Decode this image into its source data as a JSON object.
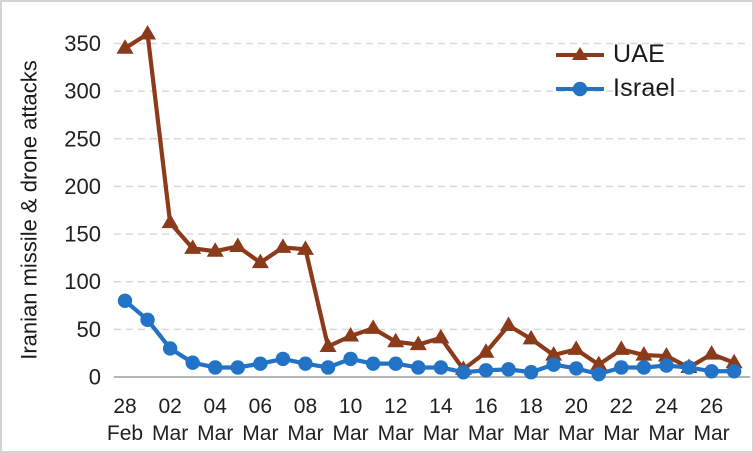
{
  "chart_data": {
    "type": "line",
    "title": "",
    "xlabel": "",
    "ylabel": "Iranian missile & drone attacks",
    "ylim": [
      0,
      350
    ],
    "yticks": [
      0,
      50,
      100,
      150,
      200,
      250,
      300,
      350
    ],
    "grid": "horizontal-dashed",
    "legend_position": "top-right-inside",
    "x_tick_label_interval": 2,
    "categories": [
      "28 Feb",
      "01 Mar",
      "02 Mar",
      "03 Mar",
      "04 Mar",
      "05 Mar",
      "06 Mar",
      "07 Mar",
      "08 Mar",
      "09 Mar",
      "10 Mar",
      "11 Mar",
      "12 Mar",
      "13 Mar",
      "14 Mar",
      "15 Mar",
      "16 Mar",
      "17 Mar",
      "18 Mar",
      "19 Mar",
      "20 Mar",
      "21 Mar",
      "22 Mar",
      "23 Mar",
      "24 Mar",
      "25 Mar",
      "26 Mar",
      "27 Mar"
    ],
    "series": [
      {
        "name": "UAE",
        "marker": "triangle",
        "color": "#8B3A1A",
        "values": [
          345,
          360,
          162,
          135,
          132,
          137,
          120,
          136,
          134,
          32,
          43,
          51,
          37,
          34,
          41,
          8,
          26,
          54,
          40,
          23,
          29,
          13,
          29,
          23,
          22,
          10,
          24,
          15
        ]
      },
      {
        "name": "Israel",
        "marker": "circle",
        "color": "#2272C6",
        "values": [
          80,
          60,
          30,
          15,
          10,
          10,
          14,
          19,
          14,
          10,
          19,
          14,
          14,
          10,
          10,
          5,
          7,
          8,
          5,
          13,
          9,
          3,
          10,
          10,
          12,
          10,
          6,
          6
        ]
      }
    ],
    "colors": {
      "gridline": "#D9D9D9",
      "axis_line": "#ABABAB",
      "tick_text": "#1f1f1f",
      "frame_border": "#d4d4d4"
    }
  }
}
